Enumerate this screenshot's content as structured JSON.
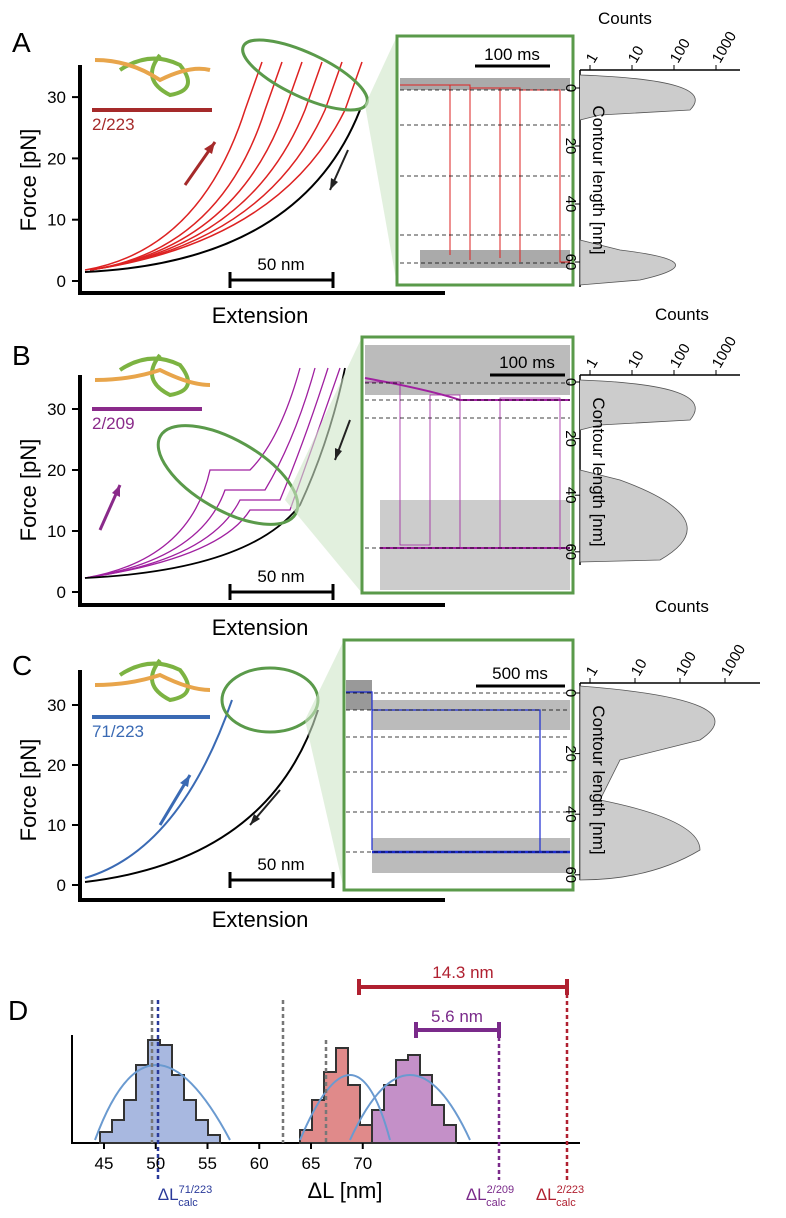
{
  "panels": [
    {
      "letter": "A",
      "ylabel": "Force [pN]",
      "xlabel": "Extension",
      "yticks": [
        0,
        10,
        20,
        30
      ],
      "scalebar": "50 nm",
      "construct": "2/223",
      "inset_scalebar": "100 ms",
      "hist_xlabel": "Counts",
      "hist_xticks": [
        1,
        10,
        100,
        1000
      ],
      "hist_ylabel": "Contour length [nm]",
      "hist_yticks": [
        0,
        20,
        40,
        60
      ]
    },
    {
      "letter": "B",
      "ylabel": "Force [pN]",
      "xlabel": "Extension",
      "yticks": [
        0,
        10,
        20,
        30
      ],
      "scalebar": "50 nm",
      "construct": "2/209",
      "inset_scalebar": "100 ms",
      "hist_xlabel": "Counts",
      "hist_xticks": [
        1,
        10,
        100,
        1000
      ],
      "hist_ylabel": "Contour length [nm]",
      "hist_yticks": [
        0,
        20,
        40,
        60
      ]
    },
    {
      "letter": "C",
      "ylabel": "Force [pN]",
      "xlabel": "Extension",
      "yticks": [
        0,
        10,
        20,
        30
      ],
      "scalebar": "50 nm",
      "construct": "71/223",
      "inset_scalebar": "500 ms",
      "hist_xlabel": "Counts",
      "hist_xticks": [
        1,
        10,
        100,
        1000
      ],
      "hist_ylabel": "Contour length [nm]",
      "hist_yticks": [
        0,
        20,
        40,
        60
      ]
    }
  ],
  "panel_d": {
    "letter": "D",
    "xlabel": "ΔL [nm]",
    "xticks": [
      45,
      50,
      55,
      60,
      65,
      70
    ],
    "span_large": "14.3 nm",
    "span_small": "5.6 nm",
    "calc_labels": [
      {
        "main": "ΔL",
        "sup": "71/223",
        "sub": "calc"
      },
      {
        "main": "ΔL",
        "sup": "2/209",
        "sub": "calc"
      },
      {
        "main": "ΔL",
        "sup": "2/223",
        "sub": "calc"
      }
    ]
  }
}
